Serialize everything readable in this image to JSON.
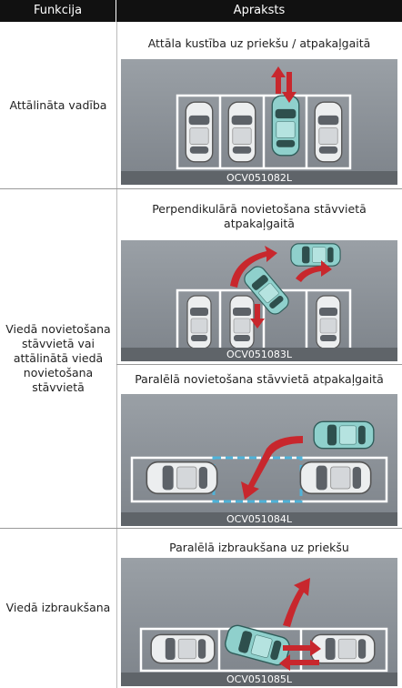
{
  "table": {
    "headers": [
      "Funkcija",
      "Apraksts"
    ],
    "rows": [
      {
        "function": "Attālināta vadība",
        "items": [
          {
            "caption": "Attāla kustība uz priekšu / atpakaļgaitā",
            "image_code": "OCV051082L"
          }
        ]
      },
      {
        "function": "Viedā novietošana stāvvietā vai attālinātā viedā novietošana stāvvietā",
        "items": [
          {
            "caption": "Perpendikulārā novietošana stāvvietā atpakaļgaitā",
            "image_code": "OCV051083L"
          },
          {
            "caption": "Paralēlā novietošana stāvvietā atpakaļgaitā",
            "image_code": "OCV051084L"
          }
        ]
      },
      {
        "function": "Viedā izbraukšana",
        "items": [
          {
            "caption": "Paralēlā izbraukšana uz priekšu",
            "image_code": "OCV051085L"
          }
        ]
      }
    ]
  }
}
